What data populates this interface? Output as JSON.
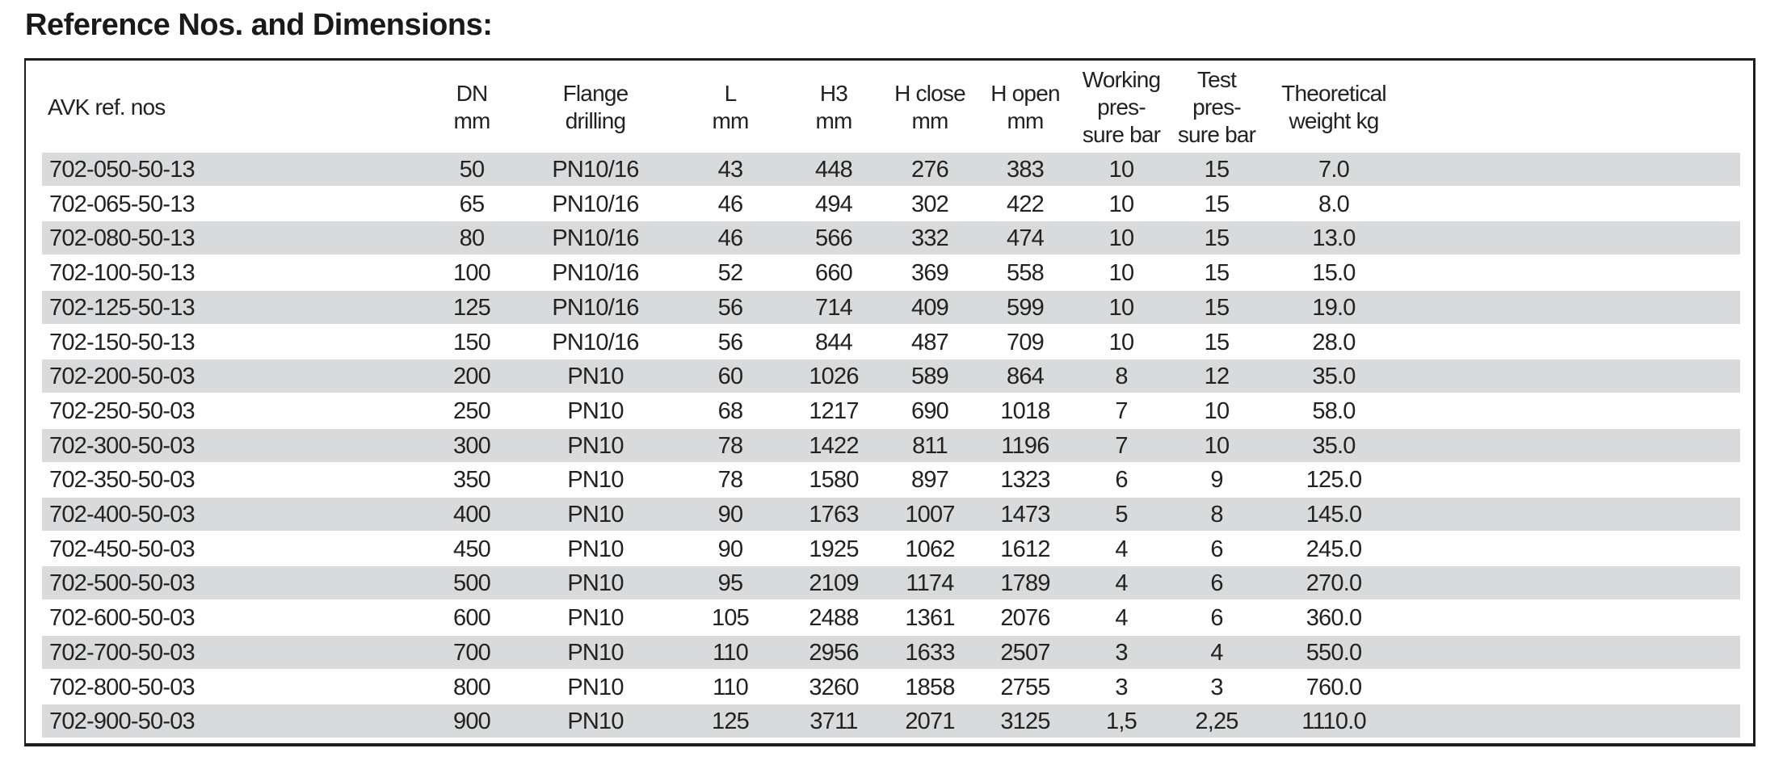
{
  "title": "Reference Nos. and Dimensions:",
  "table": {
    "headers": [
      "AVK ref. nos",
      "DN\nmm",
      "Flange\ndrilling",
      "L\nmm",
      "H3\nmm",
      "H close\nmm",
      "H open\nmm",
      "Working\npres-\nsure bar",
      "Test\npres-\nsure bar",
      "Theoretical\nweight kg"
    ],
    "rows": [
      [
        "702-050-50-13",
        "50",
        "PN10/16",
        "43",
        "448",
        "276",
        "383",
        "10",
        "15",
        "7.0"
      ],
      [
        "702-065-50-13",
        "65",
        "PN10/16",
        "46",
        "494",
        "302",
        "422",
        "10",
        "15",
        "8.0"
      ],
      [
        "702-080-50-13",
        "80",
        "PN10/16",
        "46",
        "566",
        "332",
        "474",
        "10",
        "15",
        "13.0"
      ],
      [
        "702-100-50-13",
        "100",
        "PN10/16",
        "52",
        "660",
        "369",
        "558",
        "10",
        "15",
        "15.0"
      ],
      [
        "702-125-50-13",
        "125",
        "PN10/16",
        "56",
        "714",
        "409",
        "599",
        "10",
        "15",
        "19.0"
      ],
      [
        "702-150-50-13",
        "150",
        "PN10/16",
        "56",
        "844",
        "487",
        "709",
        "10",
        "15",
        "28.0"
      ],
      [
        "702-200-50-03",
        "200",
        "PN10",
        "60",
        "1026",
        "589",
        "864",
        "8",
        "12",
        "35.0"
      ],
      [
        "702-250-50-03",
        "250",
        "PN10",
        "68",
        "1217",
        "690",
        "1018",
        "7",
        "10",
        "58.0"
      ],
      [
        "702-300-50-03",
        "300",
        "PN10",
        "78",
        "1422",
        "811",
        "1196",
        "7",
        "10",
        "35.0"
      ],
      [
        "702-350-50-03",
        "350",
        "PN10",
        "78",
        "1580",
        "897",
        "1323",
        "6",
        "9",
        "125.0"
      ],
      [
        "702-400-50-03",
        "400",
        "PN10",
        "90",
        "1763",
        "1007",
        "1473",
        "5",
        "8",
        "145.0"
      ],
      [
        "702-450-50-03",
        "450",
        "PN10",
        "90",
        "1925",
        "1062",
        "1612",
        "4",
        "6",
        "245.0"
      ],
      [
        "702-500-50-03",
        "500",
        "PN10",
        "95",
        "2109",
        "1174",
        "1789",
        "4",
        "6",
        "270.0"
      ],
      [
        "702-600-50-03",
        "600",
        "PN10",
        "105",
        "2488",
        "1361",
        "2076",
        "4",
        "6",
        "360.0"
      ],
      [
        "702-700-50-03",
        "700",
        "PN10",
        "110",
        "2956",
        "1633",
        "2507",
        "3",
        "4",
        "550.0"
      ],
      [
        "702-800-50-03",
        "800",
        "PN10",
        "110",
        "3260",
        "1858",
        "2755",
        "3",
        "3",
        "760.0"
      ],
      [
        "702-900-50-03",
        "900",
        "PN10",
        "125",
        "3711",
        "2071",
        "3125",
        "1,5",
        "2,25",
        "1110.0"
      ]
    ],
    "stripe_color": "#d8dadb"
  }
}
